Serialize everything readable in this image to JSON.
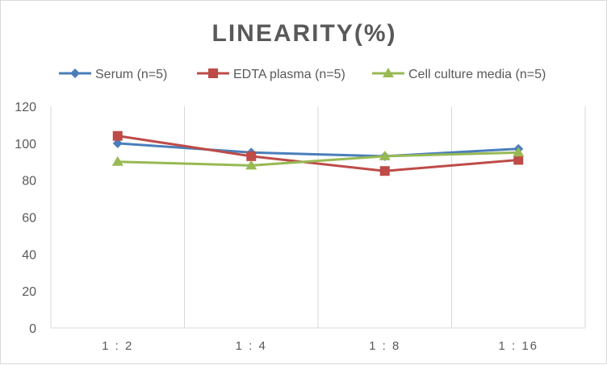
{
  "chart_data": {
    "type": "line",
    "title": "LINEARITY(%)",
    "categories": [
      "1:2",
      "1:4",
      "1:8",
      "1:16"
    ],
    "ylim": [
      0,
      120
    ],
    "yticks": [
      0,
      20,
      40,
      60,
      80,
      100,
      120
    ],
    "grid": "vertical",
    "legend_position": "top",
    "series": [
      {
        "name": "Serum (n=5)",
        "values": [
          100,
          95,
          93,
          97
        ],
        "color": "#4a7ebb",
        "marker": "diamond"
      },
      {
        "name": "EDTA plasma (n=5)",
        "values": [
          104,
          93,
          85,
          91
        ],
        "color": "#be4b48",
        "marker": "square"
      },
      {
        "name": "Cell culture media (n=5)",
        "values": [
          90,
          88,
          93,
          95
        ],
        "color": "#98b954",
        "marker": "triangle"
      }
    ]
  }
}
